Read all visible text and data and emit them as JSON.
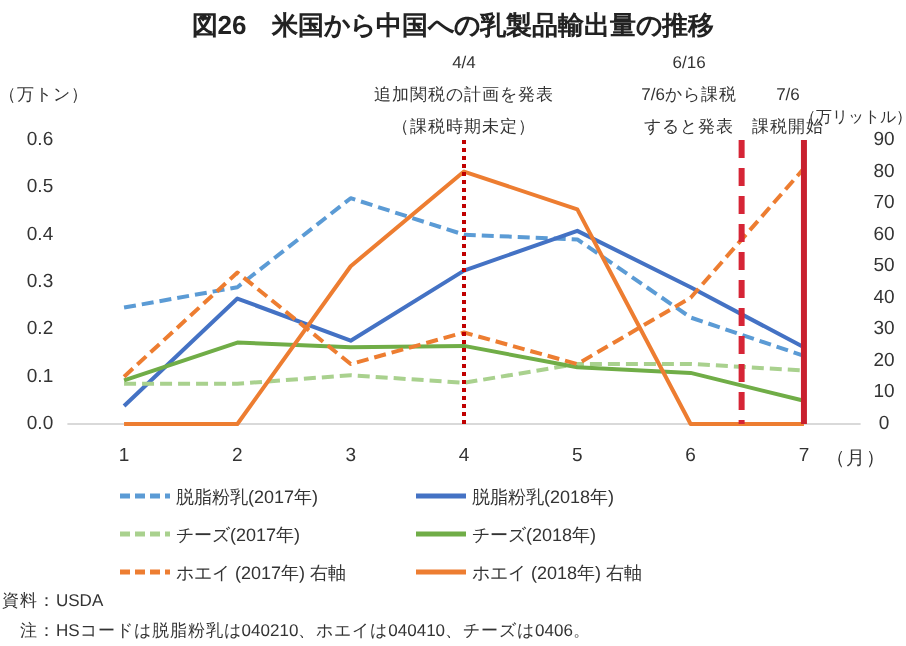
{
  "chart_data": {
    "type": "line",
    "title": "図26　米国から中国への乳製品輸出量の推移",
    "x": [
      1,
      2,
      3,
      4,
      5,
      6,
      7
    ],
    "xlim": [
      0.5,
      7.5
    ],
    "xticks": [
      1,
      2,
      3,
      4,
      5,
      6,
      7
    ],
    "xlabel": "（月）",
    "ylabel": "（万トン）",
    "y2label": "（万リットル）",
    "ylim": [
      0,
      0.6
    ],
    "yticks": [
      {
        "value": 0,
        "label": "0.0"
      },
      {
        "value": 0.1,
        "label": "0.1"
      },
      {
        "value": 0.2,
        "label": "0.2"
      },
      {
        "value": 0.3,
        "label": "0.3"
      },
      {
        "value": 0.4,
        "label": "0.4"
      },
      {
        "value": 0.5,
        "label": "0.5"
      },
      {
        "value": 0.6,
        "label": "0.6"
      }
    ],
    "y2lim": [
      0,
      90
    ],
    "y2ticks": [
      0,
      10,
      20,
      30,
      40,
      50,
      60,
      70,
      80,
      90
    ],
    "series": [
      {
        "name": "脱脂粉乳(2017年)",
        "color": "#5b9bd5",
        "line_style": "dashed",
        "values": [
          0.246,
          0.289,
          0.477,
          0.4,
          0.39,
          0.225,
          0.144
        ]
      },
      {
        "name": "脱脂粉乳(2018年)",
        "color": "#4472c4",
        "line_style": "solid",
        "values": [
          0.038,
          0.265,
          0.176,
          0.324,
          0.408,
          0.289,
          0.162
        ]
      },
      {
        "name": "チーズ(2017年)",
        "color": "#a9d18e",
        "line_style": "dashed",
        "values": [
          0.085,
          0.085,
          0.103,
          0.087,
          0.127,
          0.127,
          0.113
        ]
      },
      {
        "name": "チーズ(2018年)",
        "color": "#70ad47",
        "line_style": "solid",
        "values": [
          0.092,
          0.172,
          0.162,
          0.165,
          0.12,
          0.108,
          0.049
        ]
      },
      {
        "name": "ホエイ (2017年) 右軸",
        "color": "#ed7d31",
        "line_style": "dashed",
        "axis": "y2",
        "values": [
          15,
          48,
          19,
          29,
          19,
          40,
          81
        ]
      },
      {
        "name": "ホエイ (2018年) 右軸",
        "color": "#ed7d31",
        "line_style": "solid",
        "axis": "y2",
        "values": [
          0,
          0,
          50,
          80,
          68,
          0,
          0
        ]
      }
    ],
    "ref_lines": [
      {
        "axis": "x",
        "value": 4,
        "label": "4/4\n追加関税の計画を発表（課税時期未定）",
        "color": "#c00000",
        "line_style": "dotted"
      },
      {
        "axis": "x",
        "value": 6.45,
        "label": "6/16\n7/6から課税すると発表",
        "color": "#d62536",
        "line_style": "dashed"
      },
      {
        "axis": "x",
        "value": 7,
        "label": "7/6\n課税開始",
        "color": "#c8202e",
        "line_style": "solid"
      }
    ],
    "grid": false,
    "legend": "bottom",
    "marker": "none",
    "annotations": [
      "資料：USDA",
      "　注：HSコードは脱脂粉乳は040210、ホエイは040410、チーズは0406。"
    ]
  }
}
